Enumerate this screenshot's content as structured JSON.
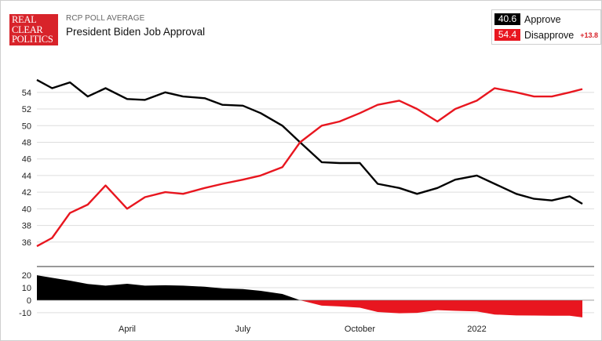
{
  "header": {
    "logo_lines": [
      "REAL",
      "CLEAR",
      "POLITICS"
    ],
    "kicker": "RCP POLL AVERAGE",
    "title": "President Biden Job Approval"
  },
  "legend": {
    "approve_value": "40.6",
    "approve_label": "Approve",
    "disapprove_value": "54.4",
    "disapprove_label": "Disapprove",
    "spread": "+13.8"
  },
  "colors": {
    "approve": "#000000",
    "disapprove": "#e8161f",
    "grid": "#dddddd"
  },
  "chart_data": [
    {
      "type": "line",
      "title": "",
      "xlabel": "",
      "ylabel": "",
      "ylim": [
        34,
        57
      ],
      "y_ticks": [
        36,
        38,
        40,
        42,
        44,
        46,
        48,
        50,
        52,
        54
      ],
      "x_ticks": [
        "April",
        "July",
        "October",
        "2022"
      ],
      "x": [
        "2021-01-20",
        "2021-02-01",
        "2021-02-15",
        "2021-03-01",
        "2021-03-15",
        "2021-04-01",
        "2021-04-15",
        "2021-05-01",
        "2021-05-15",
        "2021-06-01",
        "2021-06-15",
        "2021-07-01",
        "2021-07-15",
        "2021-08-01",
        "2021-08-15",
        "2021-09-01",
        "2021-09-15",
        "2021-10-01",
        "2021-10-15",
        "2021-11-01",
        "2021-11-15",
        "2021-12-01",
        "2021-12-15",
        "2022-01-01",
        "2022-01-15",
        "2022-02-01",
        "2022-02-15",
        "2022-03-01",
        "2022-03-15",
        "2022-03-25"
      ],
      "series": [
        {
          "name": "Approve",
          "color": "#000000",
          "values": [
            55.5,
            54.5,
            55.2,
            53.5,
            54.5,
            53.2,
            53.1,
            54.0,
            53.5,
            53.3,
            52.5,
            52.4,
            51.5,
            50.0,
            48.0,
            45.6,
            45.5,
            45.5,
            43.0,
            42.5,
            41.8,
            42.5,
            43.5,
            44.0,
            43.0,
            41.8,
            41.2,
            41.0,
            41.5,
            40.6
          ]
        },
        {
          "name": "Disapprove",
          "color": "#e8161f",
          "values": [
            35.5,
            36.5,
            39.5,
            40.5,
            42.8,
            40.0,
            41.4,
            42.0,
            41.8,
            42.5,
            43.0,
            43.5,
            44.0,
            45.0,
            48.0,
            50.0,
            50.5,
            51.5,
            52.5,
            53.0,
            52.0,
            50.5,
            52.0,
            53.0,
            54.5,
            54.0,
            53.5,
            53.5,
            54.0,
            54.4
          ]
        }
      ]
    },
    {
      "type": "area",
      "title": "",
      "ylim": [
        -12,
        22
      ],
      "y_ticks": [
        20,
        10,
        0,
        -10
      ],
      "x": [
        "2021-01-20",
        "2021-02-01",
        "2021-02-15",
        "2021-03-01",
        "2021-03-15",
        "2021-04-01",
        "2021-04-15",
        "2021-05-01",
        "2021-05-15",
        "2021-06-01",
        "2021-06-15",
        "2021-07-01",
        "2021-07-15",
        "2021-08-01",
        "2021-08-15",
        "2021-09-01",
        "2021-09-15",
        "2021-10-01",
        "2021-10-15",
        "2021-11-01",
        "2021-11-15",
        "2021-12-01",
        "2021-12-15",
        "2022-01-01",
        "2022-01-15",
        "2022-02-01",
        "2022-02-15",
        "2022-03-01",
        "2022-03-15",
        "2022-03-25"
      ],
      "values": [
        20.0,
        18.0,
        15.7,
        13.0,
        11.7,
        13.2,
        11.7,
        12.0,
        11.7,
        10.8,
        9.5,
        8.9,
        7.5,
        5.0,
        0.0,
        -4.4,
        -5.0,
        -6.0,
        -9.5,
        -10.5,
        -10.2,
        -8.0,
        -8.5,
        -9.0,
        -11.5,
        -12.2,
        -12.3,
        -12.5,
        -12.5,
        -13.8
      ]
    }
  ]
}
